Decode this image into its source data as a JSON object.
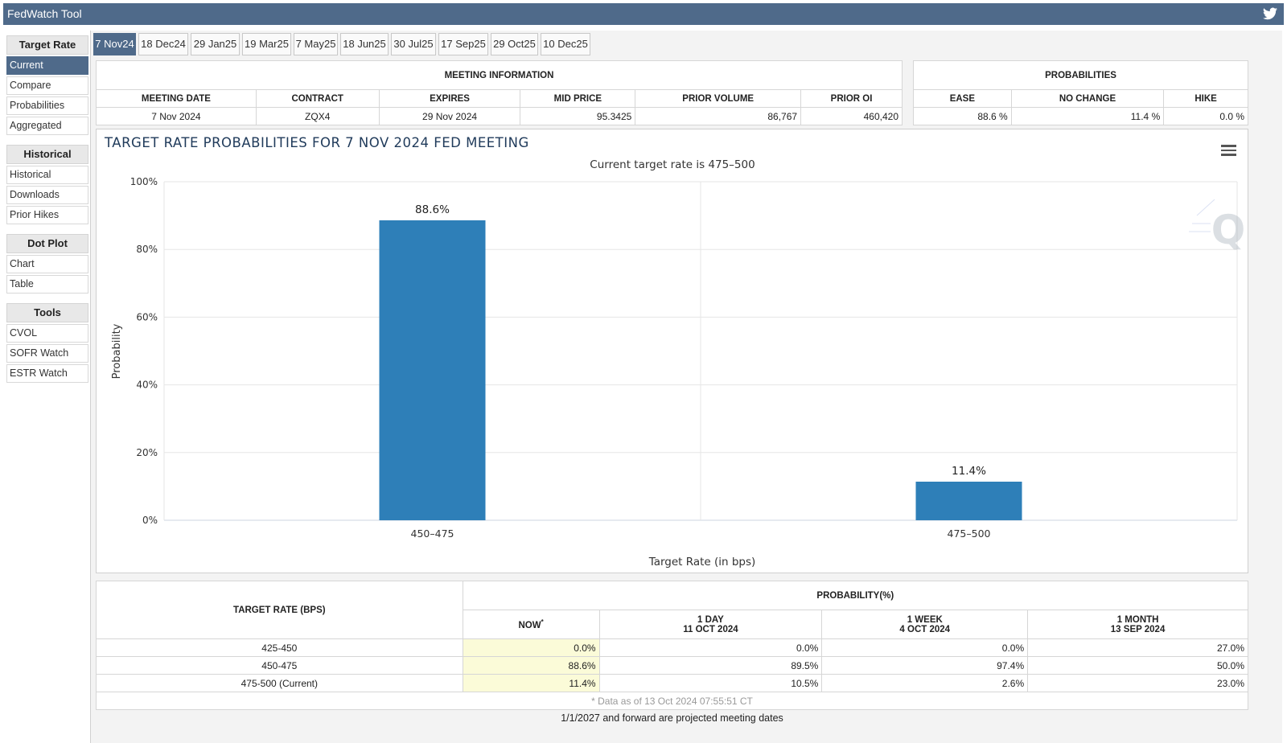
{
  "app": {
    "title": "FedWatch Tool"
  },
  "sidebar": {
    "groups": [
      {
        "header": "Target Rate",
        "items": [
          "Current",
          "Compare",
          "Probabilities",
          "Aggregated"
        ]
      },
      {
        "header": "Historical",
        "items": [
          "Historical",
          "Downloads",
          "Prior Hikes"
        ]
      },
      {
        "header": "Dot Plot",
        "items": [
          "Chart",
          "Table"
        ]
      },
      {
        "header": "Tools",
        "items": [
          "CVOL",
          "SOFR Watch",
          "ESTR Watch"
        ]
      }
    ],
    "active_item": "Current"
  },
  "tabs": [
    "7 Nov24",
    "18 Dec24",
    "29 Jan25",
    "19 Mar25",
    "7 May25",
    "18 Jun25",
    "30 Jul25",
    "17 Sep25",
    "29 Oct25",
    "10 Dec25"
  ],
  "active_tab": "7 Nov24",
  "meeting_info": {
    "title": "MEETING INFORMATION",
    "headers": [
      "MEETING DATE",
      "CONTRACT",
      "EXPIRES",
      "MID PRICE",
      "PRIOR VOLUME",
      "PRIOR OI"
    ],
    "values": [
      "7 Nov 2024",
      "ZQX4",
      "29 Nov 2024",
      "95.3425",
      "86,767",
      "460,420"
    ]
  },
  "probabilities": {
    "title": "PROBABILITIES",
    "headers": [
      "EASE",
      "NO CHANGE",
      "HIKE"
    ],
    "values": [
      "88.6 %",
      "11.4 %",
      "0.0 %"
    ]
  },
  "chart_data": {
    "type": "bar",
    "title": "TARGET RATE PROBABILITIES FOR 7 NOV 2024 FED MEETING",
    "subtitle": "Current target rate is 475–500",
    "categories": [
      "450–475",
      "475–500"
    ],
    "values": [
      88.6,
      11.4
    ],
    "data_labels": [
      "88.6%",
      "11.4%"
    ],
    "xlabel": "Target Rate (in bps)",
    "ylabel": "Probability",
    "ylim": [
      0,
      100
    ],
    "yticks": [
      "0%",
      "20%",
      "40%",
      "60%",
      "80%",
      "100%"
    ],
    "bar_color": "#2e7fb8",
    "grid": true,
    "legend": "none"
  },
  "prob_table": {
    "col_rate": "TARGET RATE (BPS)",
    "group": "PROBABILITY(%)",
    "cols": [
      {
        "line1": "NOW",
        "line2": "",
        "sup": "*"
      },
      {
        "line1": "1 DAY",
        "line2": "11 OCT 2024"
      },
      {
        "line1": "1 WEEK",
        "line2": "4 OCT 2024"
      },
      {
        "line1": "1 MONTH",
        "line2": "13 SEP 2024"
      }
    ],
    "rows": [
      {
        "rate": "425-450",
        "values": [
          "0.0%",
          "0.0%",
          "0.0%",
          "27.0%"
        ]
      },
      {
        "rate": "450-475",
        "values": [
          "88.6%",
          "89.5%",
          "97.4%",
          "50.0%"
        ]
      },
      {
        "rate": "475-500 (Current)",
        "values": [
          "11.4%",
          "10.5%",
          "2.6%",
          "23.0%"
        ]
      }
    ],
    "note": "* Data as of 13 Oct 2024 07:55:51 CT"
  },
  "footer_note": "1/1/2027 and forward are projected meeting dates",
  "icons": {
    "social": "twitter-icon",
    "menu": "hamburger-menu-icon",
    "watermark": "quikstrike-q-logo"
  }
}
